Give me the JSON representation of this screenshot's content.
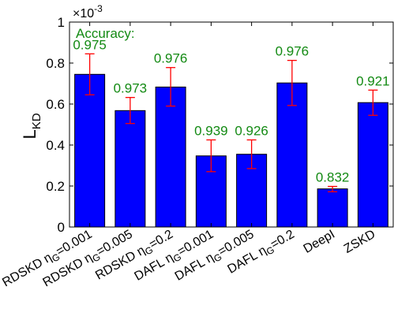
{
  "chart_data": {
    "type": "bar",
    "ylabel_main": "L",
    "ylabel_sub": "KD",
    "y_multiplier_base": "×10",
    "y_multiplier_exp": "-3",
    "ylim": [
      0,
      1
    ],
    "yticks": [
      0,
      0.2,
      0.4,
      0.6,
      0.8,
      1
    ],
    "ytick_labels": [
      "0",
      "0.2",
      "0.4",
      "0.6",
      "0.8",
      "1"
    ],
    "grid": false,
    "categories": [
      {
        "main": "RDSKD ",
        "eta": "η",
        "sub": "G",
        "tail": "=0.001"
      },
      {
        "main": "RDSKD ",
        "eta": "η",
        "sub": "G",
        "tail": "=0.005"
      },
      {
        "main": "RDSKD ",
        "eta": "η",
        "sub": "G",
        "tail": "=0.2"
      },
      {
        "main": "DAFL ",
        "eta": "η",
        "sub": "G",
        "tail": "=0.001"
      },
      {
        "main": "DAFL ",
        "eta": "η",
        "sub": "G",
        "tail": "=0.005"
      },
      {
        "main": "DAFL ",
        "eta": "η",
        "sub": "G",
        "tail": "=0.2"
      },
      {
        "main": "DeepI",
        "eta": "",
        "sub": "",
        "tail": ""
      },
      {
        "main": "ZSKD",
        "eta": "",
        "sub": "",
        "tail": ""
      }
    ],
    "values": [
      0.745,
      0.568,
      0.683,
      0.347,
      0.355,
      0.703,
      0.186,
      0.607
    ],
    "error_low": [
      0.645,
      0.505,
      0.59,
      0.27,
      0.285,
      0.593,
      0.172,
      0.545
    ],
    "error_high": [
      0.845,
      0.632,
      0.778,
      0.425,
      0.425,
      0.813,
      0.198,
      0.668
    ],
    "accuracy_title": "Accuracy:",
    "accuracy_labels": [
      "0.975",
      "0.973",
      "0.976",
      "0.939",
      "0.926",
      "0.976",
      "0.832",
      "0.921"
    ],
    "colors": {
      "bar": "#0000ff",
      "bar_edge": "#000000",
      "error": "#ff0000",
      "accuracy": "#138a13"
    }
  }
}
